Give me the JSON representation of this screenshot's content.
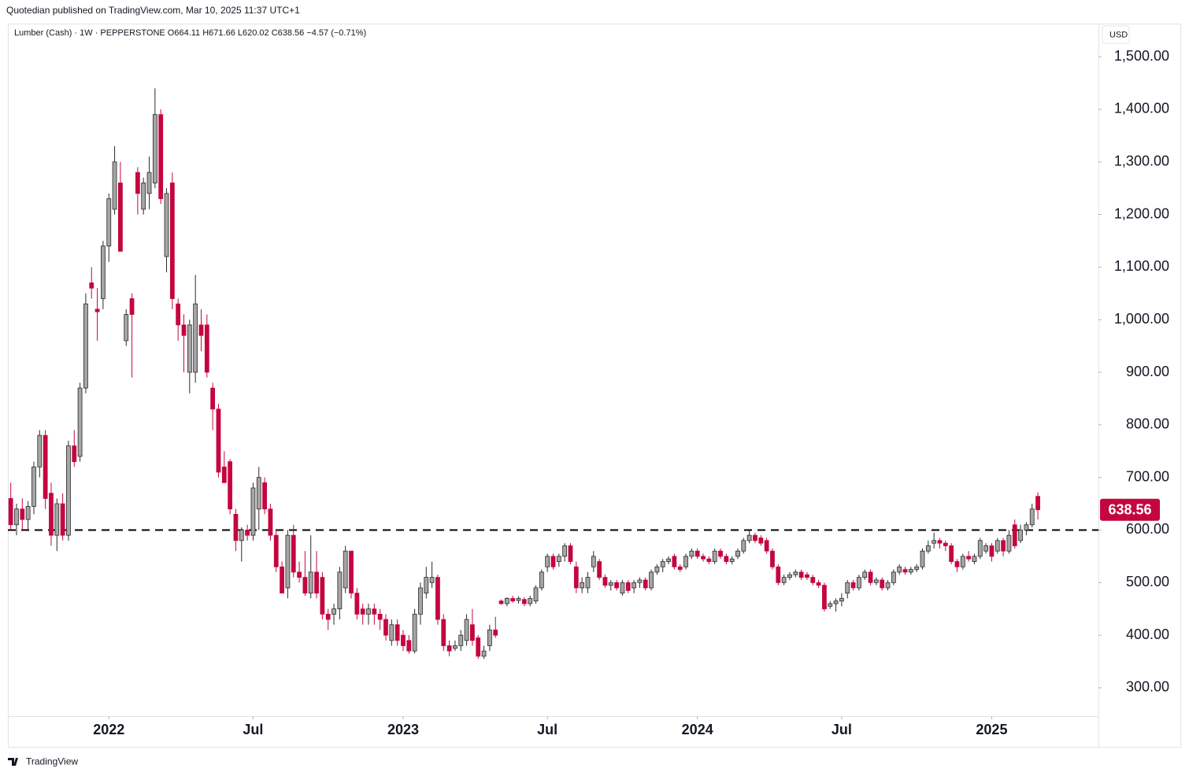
{
  "header": {
    "published": "Quotedian published on TradingView.com, Mar 10, 2025 11:37 UTC+1",
    "brand": "TradingView"
  },
  "chart_data": {
    "type": "candlestick",
    "title": "Lumber (Cash) · 1W · PEPPERSTONE  O664.11 H671.66 L620.02 C638.56 −4.57 (−0.71%)",
    "currency": "USD",
    "up_color": "#a6a6a6",
    "down_color": "#c4063f",
    "border_color": "#2a2a2a",
    "xlim": [
      -0.5,
      188.5
    ],
    "xticks": [
      {
        "value": 17,
        "label": "2022"
      },
      {
        "value": 42,
        "label": "Jul"
      },
      {
        "value": 68,
        "label": "2023"
      },
      {
        "value": 93,
        "label": "Jul"
      },
      {
        "value": 119,
        "label": "2024"
      },
      {
        "value": 144,
        "label": "Jul"
      },
      {
        "value": 170,
        "label": "2025"
      }
    ],
    "ylim": [
      246,
      1563
    ],
    "yticks": [
      {
        "value": 300,
        "label": "300.00"
      },
      {
        "value": 400,
        "label": "400.00"
      },
      {
        "value": 500,
        "label": "500.00"
      },
      {
        "value": 600,
        "label": "600.00"
      },
      {
        "value": 700,
        "label": "700.00"
      },
      {
        "value": 800,
        "label": "800.00"
      },
      {
        "value": 900,
        "label": "900.00"
      },
      {
        "value": 1000,
        "label": "1,000.00"
      },
      {
        "value": 1100,
        "label": "1,100.00"
      },
      {
        "value": 1200,
        "label": "1,200.00"
      },
      {
        "value": 1300,
        "label": "1,300.00"
      },
      {
        "value": 1400,
        "label": "1,400.00"
      },
      {
        "value": 1500,
        "label": "1,500.00"
      }
    ],
    "hline": 600,
    "candles": [
      [
        660,
        690,
        600,
        610
      ],
      [
        610,
        650,
        590,
        640
      ],
      [
        640,
        660,
        600,
        620
      ],
      [
        620,
        655,
        600,
        645
      ],
      [
        645,
        730,
        630,
        720
      ],
      [
        720,
        790,
        700,
        780
      ],
      [
        780,
        790,
        640,
        660
      ],
      [
        670,
        690,
        570,
        590
      ],
      [
        590,
        660,
        560,
        650
      ],
      [
        650,
        670,
        580,
        590
      ],
      [
        590,
        770,
        580,
        760
      ],
      [
        760,
        790,
        720,
        730
      ],
      [
        740,
        880,
        730,
        870
      ],
      [
        870,
        1050,
        860,
        1030
      ],
      [
        1070,
        1100,
        1040,
        1060
      ],
      [
        1020,
        1060,
        960,
        1015
      ],
      [
        1040,
        1150,
        1020,
        1140
      ],
      [
        1140,
        1240,
        1110,
        1230
      ],
      [
        1210,
        1330,
        1200,
        1300
      ],
      [
        1260,
        1300,
        1130,
        1130
      ],
      [
        960,
        1020,
        950,
        1010
      ],
      [
        1040,
        1050,
        890,
        1010
      ],
      [
        1280,
        1290,
        1200,
        1240
      ],
      [
        1210,
        1270,
        1200,
        1260
      ],
      [
        1240,
        1310,
        1210,
        1280
      ],
      [
        1260,
        1440,
        1250,
        1390
      ],
      [
        1390,
        1400,
        1220,
        1230
      ],
      [
        1120,
        1250,
        1090,
        1240
      ],
      [
        1260,
        1280,
        1020,
        1040
      ],
      [
        1030,
        1040,
        960,
        990
      ],
      [
        990,
        1010,
        900,
        970
      ],
      [
        900,
        1000,
        860,
        990
      ],
      [
        900,
        1085,
        880,
        1030
      ],
      [
        990,
        1020,
        940,
        970
      ],
      [
        990,
        1010,
        890,
        900
      ],
      [
        870,
        880,
        790,
        830
      ],
      [
        830,
        840,
        700,
        710
      ],
      [
        720,
        750,
        690,
        690
      ],
      [
        730,
        735,
        630,
        640
      ],
      [
        630,
        640,
        560,
        580
      ],
      [
        580,
        605,
        540,
        600
      ],
      [
        600,
        610,
        580,
        590
      ],
      [
        590,
        690,
        580,
        680
      ],
      [
        640,
        720,
        600,
        700
      ],
      [
        690,
        700,
        630,
        640
      ],
      [
        640,
        650,
        580,
        590
      ],
      [
        590,
        600,
        520,
        530
      ],
      [
        530,
        540,
        480,
        480
      ],
      [
        490,
        600,
        470,
        590
      ],
      [
        590,
        610,
        510,
        520
      ],
      [
        520,
        540,
        500,
        510
      ],
      [
        510,
        560,
        475,
        480
      ],
      [
        480,
        590,
        470,
        520
      ],
      [
        520,
        560,
        470,
        480
      ],
      [
        510,
        520,
        430,
        440
      ],
      [
        440,
        450,
        410,
        430
      ],
      [
        440,
        460,
        420,
        450
      ],
      [
        450,
        530,
        430,
        520
      ],
      [
        490,
        570,
        480,
        560
      ],
      [
        560,
        560,
        470,
        480
      ],
      [
        480,
        490,
        430,
        440
      ],
      [
        450,
        460,
        420,
        440
      ],
      [
        440,
        460,
        420,
        450
      ],
      [
        450,
        460,
        420,
        440
      ],
      [
        440,
        450,
        410,
        430
      ],
      [
        430,
        440,
        390,
        400
      ],
      [
        390,
        430,
        380,
        420
      ],
      [
        420,
        430,
        380,
        390
      ],
      [
        400,
        410,
        370,
        380
      ],
      [
        390,
        400,
        365,
        370
      ],
      [
        370,
        450,
        365,
        440
      ],
      [
        440,
        500,
        420,
        490
      ],
      [
        480,
        530,
        470,
        510
      ],
      [
        500,
        540,
        490,
        510
      ],
      [
        510,
        515,
        420,
        430
      ],
      [
        430,
        440,
        370,
        380
      ],
      [
        380,
        390,
        360,
        370
      ],
      [
        375,
        390,
        370,
        380
      ],
      [
        380,
        410,
        370,
        400
      ],
      [
        390,
        440,
        380,
        430
      ],
      [
        420,
        450,
        380,
        390
      ],
      [
        395,
        400,
        355,
        360
      ],
      [
        360,
        380,
        355,
        370
      ],
      [
        380,
        420,
        370,
        410
      ],
      [
        410,
        435,
        395,
        400
      ],
      [
        465,
        468,
        458,
        460
      ],
      [
        460,
        472,
        455,
        470
      ],
      [
        470,
        475,
        462,
        465
      ],
      [
        466,
        474,
        460,
        470
      ],
      [
        468,
        472,
        455,
        460
      ],
      [
        460,
        475,
        455,
        470
      ],
      [
        465,
        495,
        460,
        490
      ],
      [
        490,
        525,
        485,
        520
      ],
      [
        530,
        555,
        520,
        550
      ],
      [
        550,
        555,
        525,
        530
      ],
      [
        540,
        555,
        530,
        550
      ],
      [
        550,
        575,
        540,
        570
      ],
      [
        570,
        575,
        535,
        540
      ],
      [
        530,
        540,
        480,
        490
      ],
      [
        490,
        510,
        480,
        500
      ],
      [
        490,
        520,
        480,
        510
      ],
      [
        530,
        560,
        520,
        550
      ],
      [
        540,
        545,
        505,
        510
      ],
      [
        510,
        515,
        490,
        495
      ],
      [
        495,
        505,
        485,
        500
      ],
      [
        500,
        505,
        485,
        490
      ],
      [
        480,
        505,
        475,
        500
      ],
      [
        500,
        505,
        480,
        485
      ],
      [
        490,
        505,
        480,
        500
      ],
      [
        500,
        510,
        490,
        505
      ],
      [
        505,
        510,
        485,
        490
      ],
      [
        490,
        525,
        485,
        520
      ],
      [
        520,
        535,
        515,
        530
      ],
      [
        530,
        545,
        520,
        540
      ],
      [
        540,
        550,
        535,
        545
      ],
      [
        550,
        555,
        525,
        530
      ],
      [
        530,
        535,
        520,
        525
      ],
      [
        530,
        555,
        525,
        550
      ],
      [
        550,
        565,
        545,
        560
      ],
      [
        560,
        565,
        545,
        550
      ],
      [
        550,
        555,
        540,
        545
      ],
      [
        545,
        550,
        535,
        540
      ],
      [
        540,
        565,
        535,
        560
      ],
      [
        560,
        565,
        545,
        550
      ],
      [
        550,
        555,
        535,
        540
      ],
      [
        540,
        550,
        535,
        545
      ],
      [
        550,
        565,
        545,
        560
      ],
      [
        560,
        585,
        555,
        580
      ],
      [
        580,
        600,
        575,
        590
      ],
      [
        590,
        595,
        575,
        580
      ],
      [
        585,
        590,
        570,
        575
      ],
      [
        580,
        585,
        555,
        560
      ],
      [
        560,
        565,
        525,
        530
      ],
      [
        530,
        535,
        495,
        500
      ],
      [
        500,
        515,
        495,
        510
      ],
      [
        510,
        520,
        505,
        515
      ],
      [
        515,
        525,
        510,
        520
      ],
      [
        520,
        525,
        505,
        510
      ],
      [
        515,
        520,
        505,
        510
      ],
      [
        510,
        515,
        495,
        500
      ],
      [
        500,
        505,
        490,
        495
      ],
      [
        495,
        500,
        445,
        450
      ],
      [
        455,
        465,
        450,
        460
      ],
      [
        460,
        470,
        445,
        465
      ],
      [
        465,
        480,
        455,
        470
      ],
      [
        480,
        505,
        470,
        500
      ],
      [
        500,
        505,
        485,
        490
      ],
      [
        490,
        515,
        485,
        510
      ],
      [
        510,
        525,
        505,
        520
      ],
      [
        520,
        525,
        495,
        500
      ],
      [
        500,
        510,
        495,
        505
      ],
      [
        505,
        510,
        485,
        490
      ],
      [
        490,
        505,
        485,
        500
      ],
      [
        500,
        525,
        495,
        520
      ],
      [
        520,
        535,
        515,
        530
      ],
      [
        525,
        530,
        515,
        520
      ],
      [
        520,
        530,
        515,
        525
      ],
      [
        525,
        535,
        520,
        530
      ],
      [
        530,
        565,
        525,
        560
      ],
      [
        560,
        580,
        555,
        570
      ],
      [
        575,
        595,
        565,
        580
      ],
      [
        580,
        585,
        565,
        575
      ],
      [
        575,
        580,
        560,
        570
      ],
      [
        570,
        575,
        535,
        540
      ],
      [
        540,
        545,
        520,
        530
      ],
      [
        530,
        555,
        525,
        550
      ],
      [
        550,
        560,
        540,
        545
      ],
      [
        540,
        555,
        535,
        550
      ],
      [
        550,
        585,
        545,
        580
      ],
      [
        560,
        575,
        555,
        570
      ],
      [
        570,
        575,
        540,
        550
      ],
      [
        560,
        585,
        555,
        580
      ],
      [
        580,
        585,
        550,
        560
      ],
      [
        560,
        600,
        555,
        590
      ],
      [
        610,
        620,
        565,
        570
      ],
      [
        580,
        610,
        575,
        600
      ],
      [
        600,
        615,
        590,
        610
      ],
      [
        610,
        650,
        605,
        640
      ],
      [
        664.11,
        671.66,
        620.02,
        638.56
      ]
    ]
  }
}
